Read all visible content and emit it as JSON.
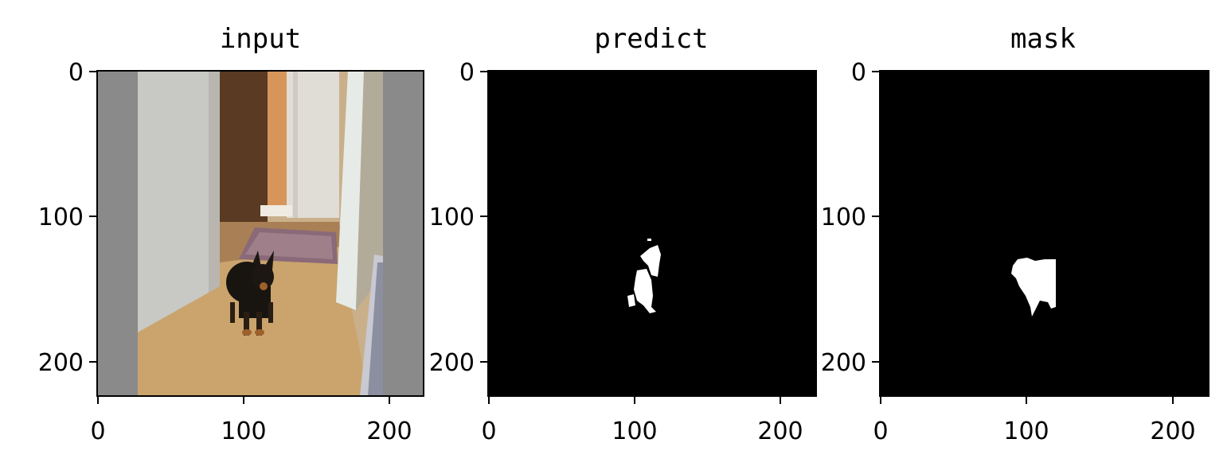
{
  "figure": {
    "panels": [
      {
        "title": "input",
        "x_ticks": [
          "0",
          "100",
          "200"
        ],
        "y_ticks": [
          "0",
          "100",
          "200"
        ],
        "content": "photo-dog-in-hallway"
      },
      {
        "title": "predict",
        "x_ticks": [
          "0",
          "100",
          "200"
        ],
        "y_ticks": [
          "0",
          "100",
          "200"
        ],
        "content": "binary-mask-prediction"
      },
      {
        "title": "mask",
        "x_ticks": [
          "0",
          "100",
          "200"
        ],
        "y_ticks": [
          "0",
          "100",
          "200"
        ],
        "content": "binary-mask-ground-truth"
      }
    ],
    "colors": {
      "background": "#ffffff",
      "mask_bg": "#000000",
      "mask_fg": "#ffffff",
      "padding_gray": "#888888"
    }
  }
}
